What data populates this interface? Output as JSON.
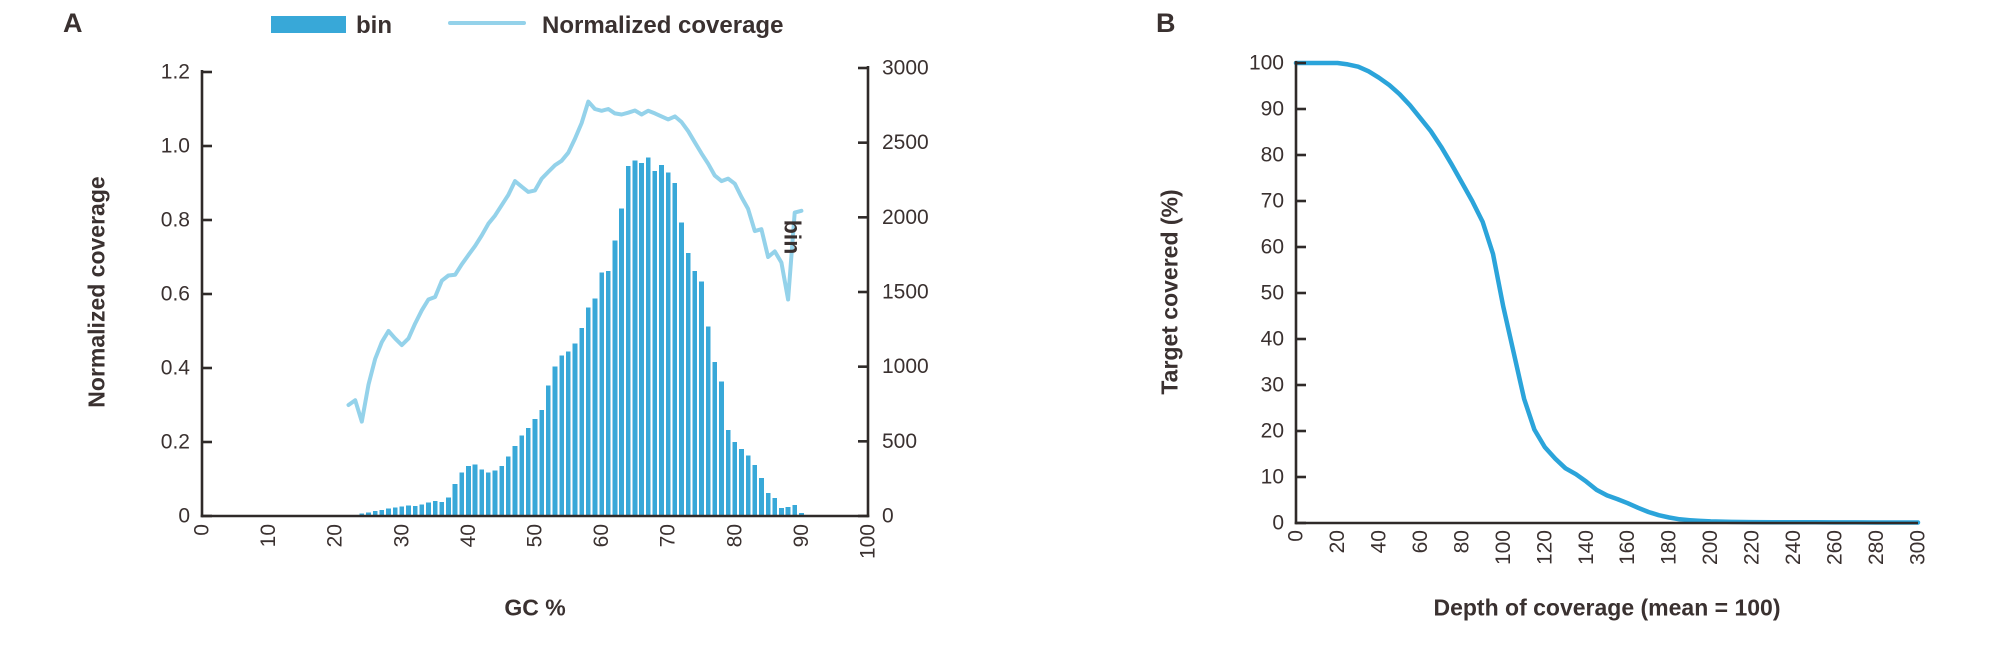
{
  "figure": {
    "background": "#ffffff",
    "text_color": "#3a3130",
    "axis_color": "#2f2a29",
    "panels": [
      {
        "id": "A",
        "letter": "A",
        "legend": [
          {
            "swatch": "bar-swatch",
            "label": "bin"
          },
          {
            "swatch": "line-swatch",
            "label": "Normalized coverage"
          }
        ],
        "xlabel": "GC %",
        "ylabel_left": "Normalized coverage",
        "ylabel_right": "bin"
      },
      {
        "id": "B",
        "letter": "B",
        "xlabel": "Depth of coverage (mean = 100)",
        "ylabel": "Target covered (%)"
      }
    ]
  },
  "chart_data": [
    {
      "panel": "A",
      "type": "bar+line",
      "title": "",
      "xlabel": "GC %",
      "xlim": [
        0,
        100
      ],
      "grid": false,
      "legend_position": "top",
      "x_ticks": {
        "values": [
          0,
          10,
          20,
          30,
          40,
          50,
          60,
          70,
          80,
          90,
          100
        ],
        "labels": [
          "0",
          "10",
          "20",
          "30",
          "40",
          "50",
          "60",
          "70",
          "80",
          "90",
          "100"
        ]
      },
      "left_axis": {
        "label": "Normalized coverage",
        "lim": [
          0,
          1.2
        ],
        "tick_values": [
          0,
          0.2,
          0.4,
          0.6,
          0.8,
          1.0,
          1.2
        ],
        "tick_labels": [
          "0",
          "0.2",
          "0.4",
          "0.6",
          "0.8",
          "1.0",
          "1.2"
        ]
      },
      "right_axis": {
        "label": "bin",
        "lim": [
          0,
          3000
        ],
        "tick_values": [
          0,
          500,
          1000,
          1500,
          2000,
          2500,
          3000
        ],
        "tick_labels": [
          "0",
          "500",
          "1000",
          "1500",
          "2000",
          "2500",
          "3000"
        ]
      },
      "series": [
        {
          "name": "bin",
          "type": "bar",
          "axis": "right",
          "color": "#38a8d8",
          "x_start": 24,
          "x_step": 1,
          "values": [
            18,
            25,
            32,
            40,
            50,
            56,
            62,
            70,
            66,
            78,
            90,
            100,
            95,
            125,
            215,
            290,
            335,
            345,
            310,
            290,
            305,
            335,
            400,
            470,
            540,
            590,
            650,
            710,
            875,
            1000,
            1075,
            1100,
            1155,
            1260,
            1395,
            1455,
            1630,
            1640,
            1845,
            2060,
            2345,
            2380,
            2365,
            2400,
            2310,
            2350,
            2300,
            2230,
            1965,
            1760,
            1640,
            1570,
            1270,
            1030,
            900,
            575,
            495,
            450,
            405,
            340,
            255,
            155,
            120,
            55,
            60,
            75,
            20
          ]
        },
        {
          "name": "Normalized coverage",
          "type": "line",
          "axis": "left",
          "color": "#94d2ea",
          "x_start": 22,
          "x_step": 1,
          "values": [
            0.3,
            0.313,
            0.255,
            0.355,
            0.425,
            0.47,
            0.5,
            0.48,
            0.462,
            0.48,
            0.52,
            0.556,
            0.585,
            0.592,
            0.636,
            0.65,
            0.652,
            0.68,
            0.705,
            0.73,
            0.758,
            0.79,
            0.812,
            0.84,
            0.868,
            0.905,
            0.89,
            0.876,
            0.88,
            0.912,
            0.93,
            0.948,
            0.96,
            0.982,
            1.02,
            1.062,
            1.12,
            1.1,
            1.095,
            1.1,
            1.088,
            1.085,
            1.09,
            1.096,
            1.085,
            1.095,
            1.088,
            1.08,
            1.072,
            1.08,
            1.065,
            1.04,
            1.01,
            0.98,
            0.952,
            0.92,
            0.905,
            0.912,
            0.898,
            0.862,
            0.83,
            0.77,
            0.775,
            0.7,
            0.715,
            0.685,
            0.585,
            0.82,
            0.825
          ]
        }
      ]
    },
    {
      "panel": "B",
      "type": "line",
      "title": "",
      "xlabel": "Depth of coverage (mean = 100)",
      "ylabel": "Target covered (%)",
      "xlim": [
        0,
        300
      ],
      "ylim": [
        0,
        100
      ],
      "grid": false,
      "x_ticks": {
        "values": [
          0,
          20,
          40,
          60,
          80,
          100,
          120,
          140,
          160,
          180,
          200,
          220,
          240,
          260,
          280,
          300
        ],
        "labels": [
          "0",
          "20",
          "40",
          "60",
          "80",
          "100",
          "120",
          "140",
          "160",
          "180",
          "200",
          "220",
          "240",
          "260",
          "280",
          "300"
        ]
      },
      "y_ticks": {
        "values": [
          0,
          10,
          20,
          30,
          40,
          50,
          60,
          70,
          80,
          90,
          100
        ],
        "labels": [
          "0",
          "10",
          "20",
          "30",
          "40",
          "50",
          "60",
          "70",
          "80",
          "90",
          "100"
        ]
      },
      "series": [
        {
          "name": "Target covered (%)",
          "type": "line",
          "color": "#2ba4da",
          "x": [
            0,
            5,
            10,
            15,
            20,
            25,
            30,
            35,
            40,
            45,
            50,
            55,
            60,
            65,
            70,
            75,
            80,
            85,
            90,
            95,
            100,
            105,
            110,
            115,
            120,
            125,
            130,
            135,
            140,
            145,
            150,
            155,
            160,
            165,
            170,
            175,
            180,
            185,
            190,
            195,
            200,
            210,
            220,
            230,
            240,
            250,
            260,
            270,
            280,
            290,
            300
          ],
          "values": [
            100,
            100,
            100,
            100,
            100,
            99.7,
            99.2,
            98.2,
            96.8,
            95.2,
            93.2,
            90.8,
            88,
            85.2,
            81.8,
            78,
            74,
            70,
            65.5,
            58.5,
            47,
            37,
            27,
            20.3,
            16.5,
            14,
            11.9,
            10.6,
            9,
            7.2,
            6,
            5.2,
            4.3,
            3.3,
            2.4,
            1.7,
            1.2,
            0.8,
            0.6,
            0.45,
            0.35,
            0.25,
            0.2,
            0.18,
            0.15,
            0.15,
            0.12,
            0.12,
            0.1,
            0.1,
            0.1
          ]
        }
      ]
    }
  ]
}
